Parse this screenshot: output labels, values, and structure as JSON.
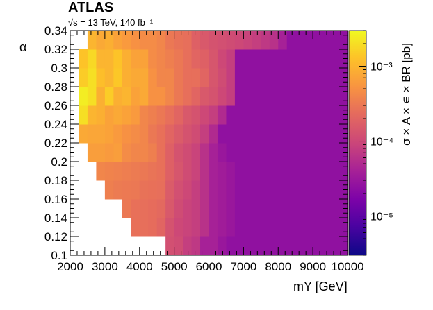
{
  "header": {
    "experiment": "ATLAS",
    "energy": "√s = 13 TeV, 140 fb⁻¹"
  },
  "chart_data": {
    "type": "heatmap",
    "xlabel": "mY [GeV]",
    "ylabel": "α",
    "zlabel": "σ × A × ∊ × BR [pb]",
    "x_range": [
      2000,
      10000
    ],
    "y_range": [
      0.1,
      0.34
    ],
    "z_range": [
      3e-06,
      0.003
    ],
    "z_scale": "log",
    "colormap": "plasma",
    "x_ticks": [
      "2000",
      "3000",
      "4000",
      "5000",
      "6000",
      "7000",
      "8000",
      "9000",
      "10000"
    ],
    "y_ticks": [
      "0.1",
      "0.12",
      "0.14",
      "0.16",
      "0.18",
      "0.2",
      "0.22",
      "0.24",
      "0.26",
      "0.28",
      "0.3",
      "0.32",
      "0.34"
    ],
    "z_ticks": [
      "10⁻⁵",
      "10⁻⁴",
      "10⁻³"
    ],
    "cell_width_gev": 250,
    "rows": [
      {
        "alpha_min": 0.1,
        "alpha_max": 0.12,
        "x_start": 4750,
        "values": [
          0.00012,
          0.00011,
          8e-05,
          7e-05,
          4e-05,
          4e-05,
          3e-05
        ]
      },
      {
        "alpha_min": 0.12,
        "alpha_max": 0.14,
        "x_start": 3750,
        "values": [
          0.00026,
          0.00025,
          0.00024,
          0.0002,
          0.00013,
          0.0001,
          9e-05,
          8e-05,
          6e-05,
          4e-05,
          3.5e-05,
          3e-05
        ]
      },
      {
        "alpha_min": 0.14,
        "alpha_max": 0.16,
        "x_start": 3500,
        "values": [
          0.0003,
          0.00026,
          0.00025,
          0.00024,
          0.00022,
          0.00015,
          0.00011,
          9e-05,
          8e-05,
          6e-05,
          4e-05,
          3.5e-05,
          3e-05
        ]
      },
      {
        "alpha_min": 0.16,
        "alpha_max": 0.18,
        "x_start": 3000,
        "values": [
          0.00035,
          0.00032,
          0.00031,
          0.0003,
          0.00027,
          0.00026,
          0.00025,
          0.00016,
          0.00012,
          0.0001,
          8e-05,
          6e-05,
          4e-05,
          3.5e-05,
          3e-05
        ]
      },
      {
        "alpha_min": 0.18,
        "alpha_max": 0.2,
        "x_start": 2750,
        "values": [
          0.0004,
          0.00038,
          0.00036,
          0.00034,
          0.00032,
          0.0003,
          0.00028,
          0.00026,
          0.00018,
          0.00014,
          0.00011,
          9e-05,
          6e-05,
          4e-05,
          3.5e-05,
          3e-05
        ]
      },
      {
        "alpha_min": 0.2,
        "alpha_max": 0.22,
        "x_start": 2500,
        "values": [
          0.00065,
          0.00065,
          0.0006,
          0.00065,
          0.00045,
          0.0004,
          0.0004,
          0.00035,
          0.00026,
          0.00018,
          0.00013,
          0.00011,
          9e-05,
          6e-05,
          4e-05,
          3e-05
        ]
      },
      {
        "alpha_min": 0.22,
        "alpha_max": 0.24,
        "x_start": 2250,
        "values": [
          0.0008,
          0.00075,
          0.00075,
          0.0007,
          0.0006,
          0.0005,
          0.00045,
          0.0004,
          0.0003,
          0.00026,
          0.0002,
          0.00016,
          0.00013,
          0.00011,
          8e-05,
          5e-05
        ]
      },
      {
        "alpha_min": 0.24,
        "alpha_max": 0.26,
        "x_start": 2250,
        "values": [
          0.002,
          0.001,
          0.0009,
          0.0007,
          0.0008,
          0.0007,
          0.0006,
          0.0004,
          0.00035,
          0.0003,
          0.00025,
          0.0002,
          0.00015,
          0.00013,
          0.0001,
          8e-05,
          5e-05
        ]
      },
      {
        "alpha_min": 0.26,
        "alpha_max": 0.28,
        "x_start": 2250,
        "values": [
          0.0025,
          0.002,
          0.0009,
          0.0015,
          0.0009,
          0.001,
          0.0007,
          0.0008,
          0.0005,
          0.0005,
          0.0004,
          0.0003,
          0.00025,
          0.0002,
          0.00015,
          0.00013,
          0.0001,
          8e-05
        ]
      },
      {
        "alpha_min": 0.28,
        "alpha_max": 0.3,
        "x_start": 2250,
        "values": [
          0.0015,
          0.002,
          0.0012,
          0.001,
          0.0014,
          0.0009,
          0.0008,
          0.0008,
          0.0005,
          0.0004,
          0.0004,
          0.0003,
          0.00025,
          0.00025,
          0.0002,
          0.00014,
          0.00011,
          8e-05
        ]
      },
      {
        "alpha_min": 0.3,
        "alpha_max": 0.32,
        "x_start": 2250,
        "values": [
          0.0013,
          0.0018,
          0.001,
          0.001,
          0.0013,
          0.0009,
          0.0007,
          0.0007,
          0.00045,
          0.0004,
          0.00035,
          0.0003,
          0.00025,
          0.0002,
          0.00018,
          0.00014,
          0.0001,
          8e-05
        ]
      },
      {
        "alpha_min": 0.32,
        "alpha_max": 0.34,
        "x_start": 2500,
        "values": [
          0.001,
          0.0008,
          0.0009,
          0.0007,
          0.0006,
          0.0005,
          0.00045,
          0.00045,
          0.0004,
          0.0003,
          0.00027,
          0.00025,
          0.00018,
          0.00015,
          0.00013,
          0.00012,
          0.00011,
          0.0001,
          9e-05,
          8e-05,
          7e-05,
          6e-05,
          4e-05
        ]
      }
    ],
    "background_value": 2.5e-05,
    "background_x_start": 6500
  }
}
